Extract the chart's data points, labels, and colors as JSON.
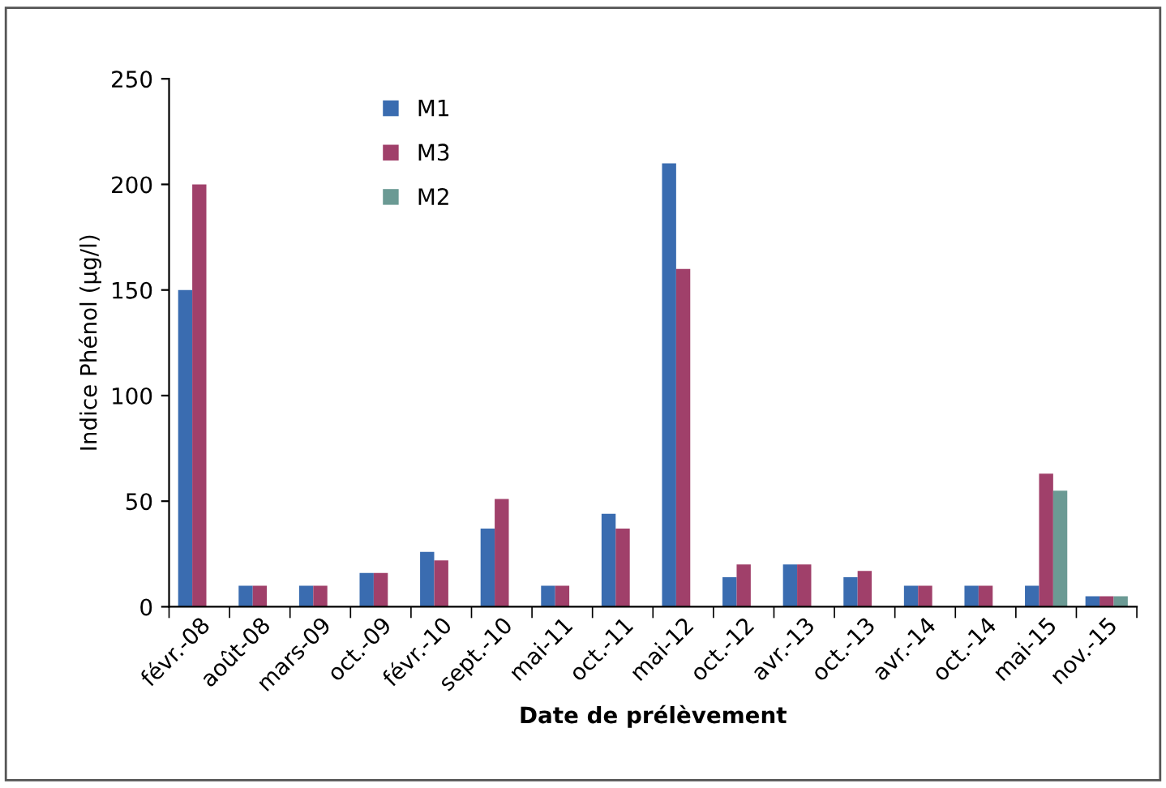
{
  "chart_data": {
    "type": "bar",
    "xlabel": "Date de prélèvement",
    "ylabel": "Indice Phénol (µg/l)",
    "categories": [
      "févr.-08",
      "août-08",
      "mars-09",
      "oct.-09",
      "févr.-10",
      "sept.-10",
      "mai-11",
      "oct.-11",
      "mai-12",
      "oct.-12",
      "avr.-13",
      "oct.-13",
      "avr.-14",
      "oct.-14",
      "mai-15",
      "nov.-15"
    ],
    "series": [
      {
        "name": "M1",
        "color": "#3a6cb0",
        "values": [
          150,
          10,
          10,
          16,
          26,
          37,
          10,
          44,
          210,
          14,
          20,
          14,
          10,
          10,
          10,
          5
        ]
      },
      {
        "name": "M3",
        "color": "#a0406a",
        "values": [
          200,
          10,
          10,
          16,
          22,
          51,
          10,
          37,
          160,
          20,
          20,
          17,
          10,
          10,
          63,
          5
        ]
      },
      {
        "name": "M2",
        "color": "#6b9a94",
        "values": [
          null,
          null,
          null,
          null,
          null,
          null,
          null,
          null,
          null,
          null,
          null,
          null,
          null,
          null,
          55,
          5
        ]
      }
    ],
    "ylim": [
      0,
      250
    ],
    "yticks": [
      0,
      50,
      100,
      150,
      200,
      250
    ],
    "grid": false,
    "legend": "top left"
  }
}
